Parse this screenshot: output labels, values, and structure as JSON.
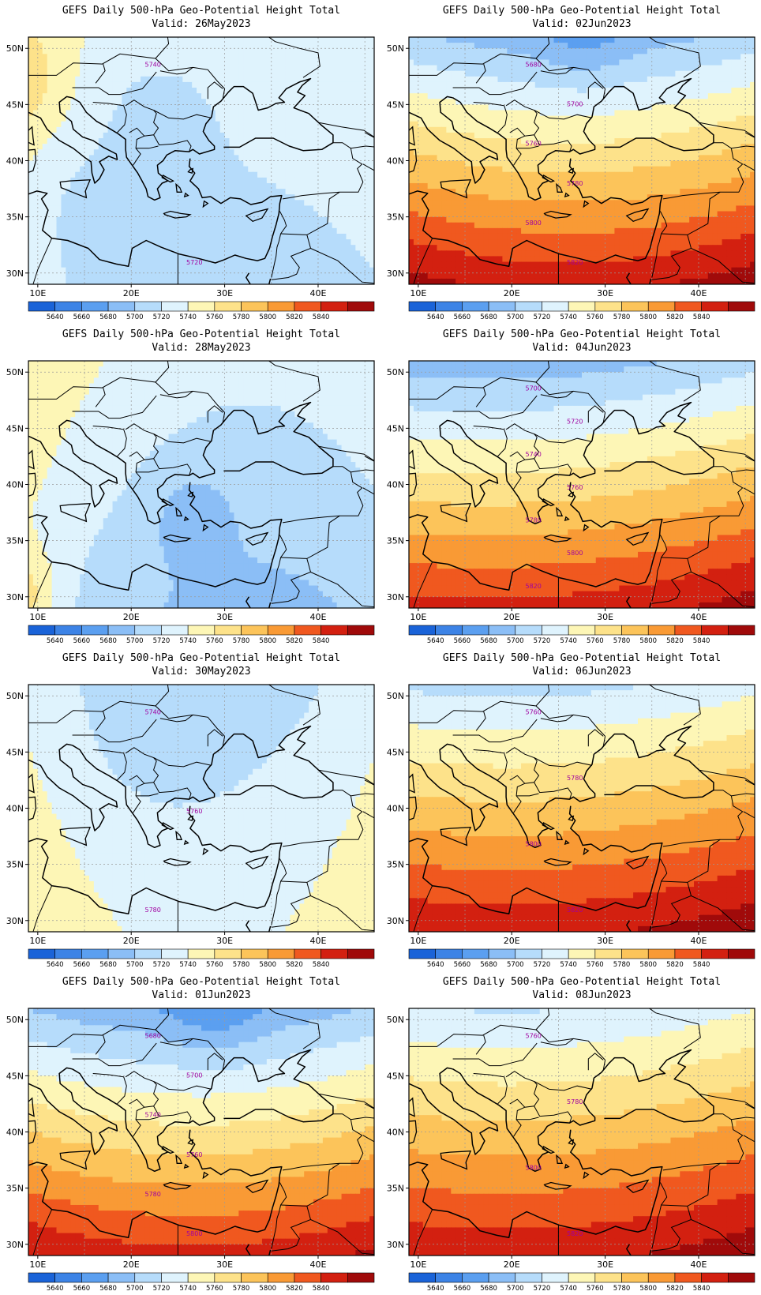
{
  "colorbar": {
    "levels": [
      "5640",
      "5660",
      "5680",
      "5700",
      "5720",
      "5740",
      "5760",
      "5780",
      "5800",
      "5820",
      "5840"
    ],
    "colors": [
      "#1a63d8",
      "#3c83e6",
      "#5b9ff0",
      "#8bbef6",
      "#b6dcfb",
      "#dff3fd",
      "#fdf6b6",
      "#fde28a",
      "#fcc45a",
      "#f99a35",
      "#f0581f",
      "#d32010",
      "#a00a0a"
    ]
  },
  "axes": {
    "x_ticks": [
      "10E",
      "20E",
      "30E",
      "40E"
    ],
    "y_ticks": [
      "50N",
      "45N",
      "40N",
      "35N",
      "30N"
    ]
  },
  "panels": [
    {
      "title": "GEFS Daily 500-hPa Geo-Potential Height Total",
      "valid": "Valid: 26May2023",
      "contour_labels": [
        "5740",
        "5720"
      ],
      "field": {
        "g0": 5722,
        "gx": -0.25,
        "gy": 0.9,
        "gxy": 0.032,
        "lows": [
          [
            22,
            44,
            -14,
            7
          ],
          [
            16,
            35.5,
            -14,
            5
          ]
        ],
        "highs": [
          [
            8,
            47,
            30,
            5
          ]
        ]
      }
    },
    {
      "title": "GEFS Daily 500-hPa Geo-Potential Height Total",
      "valid": "Valid: 02Jun2023",
      "contour_labels": [
        "5680",
        "5700",
        "5760",
        "5780",
        "5800",
        "5820"
      ],
      "field": {
        "g0": 5772,
        "gx": 0.1,
        "gy": -7.5,
        "gxy": 0.05,
        "lows": [
          [
            28,
            52,
            -20,
            5
          ]
        ],
        "highs": []
      }
    },
    {
      "title": "GEFS Daily 500-hPa Geo-Potential Height Total",
      "valid": "Valid: 28May2023",
      "contour_labels": [],
      "field": {
        "g0": 5712,
        "gx": -0.7,
        "gy": 1.4,
        "gxy": 0.06,
        "lows": [
          [
            26.5,
            37,
            -22,
            4
          ]
        ],
        "highs": [
          [
            8,
            30,
            40,
            4
          ]
        ]
      }
    },
    {
      "title": "GEFS Daily 500-hPa Geo-Potential Height Total",
      "valid": "Valid: 04Jun2023",
      "contour_labels": [
        "5700",
        "5720",
        "5740",
        "5760",
        "5780",
        "5800",
        "5820"
      ],
      "field": {
        "g0": 5770,
        "gx": 0.6,
        "gy": -7.2,
        "gxy": 0.03,
        "lows": [],
        "highs": []
      }
    },
    {
      "title": "GEFS Daily 500-hPa Geo-Potential Height Total",
      "valid": "Valid: 30May2023",
      "contour_labels": [
        "5740",
        "5760",
        "5780"
      ],
      "field": {
        "g0": 5722,
        "gx": -0.1,
        "gy": -1.2,
        "gxy": 0.07,
        "lows": [
          [
            22,
            47,
            -10,
            6
          ]
        ],
        "highs": []
      }
    },
    {
      "title": "GEFS Daily 500-hPa Geo-Potential Height Total",
      "valid": "Valid: 06Jun2023",
      "contour_labels": [
        "5760",
        "5780",
        "5800",
        "5820"
      ],
      "field": {
        "g0": 5786,
        "gx": 0.45,
        "gy": -6.5,
        "gxy": 0.03,
        "lows": [],
        "highs": []
      }
    },
    {
      "title": "GEFS Daily 500-hPa Geo-Potential Height Total",
      "valid": "Valid: 01Jun2023",
      "contour_labels": [
        "5680",
        "5700",
        "5740",
        "5760",
        "5780",
        "5800"
      ],
      "field": {
        "g0": 5765,
        "gx": 0.05,
        "gy": -7.4,
        "gxy": 0.05,
        "lows": [
          [
            29,
            52,
            -25,
            5
          ]
        ],
        "highs": []
      }
    },
    {
      "title": "GEFS Daily 500-hPa Geo-Potential Height Total",
      "valid": "Valid: 08Jun2023",
      "contour_labels": [
        "5760",
        "5780",
        "5800",
        "5820"
      ],
      "field": {
        "g0": 5788,
        "gx": 0.45,
        "gy": -6.2,
        "gxy": 0.03,
        "lows": [],
        "highs": []
      }
    }
  ]
}
